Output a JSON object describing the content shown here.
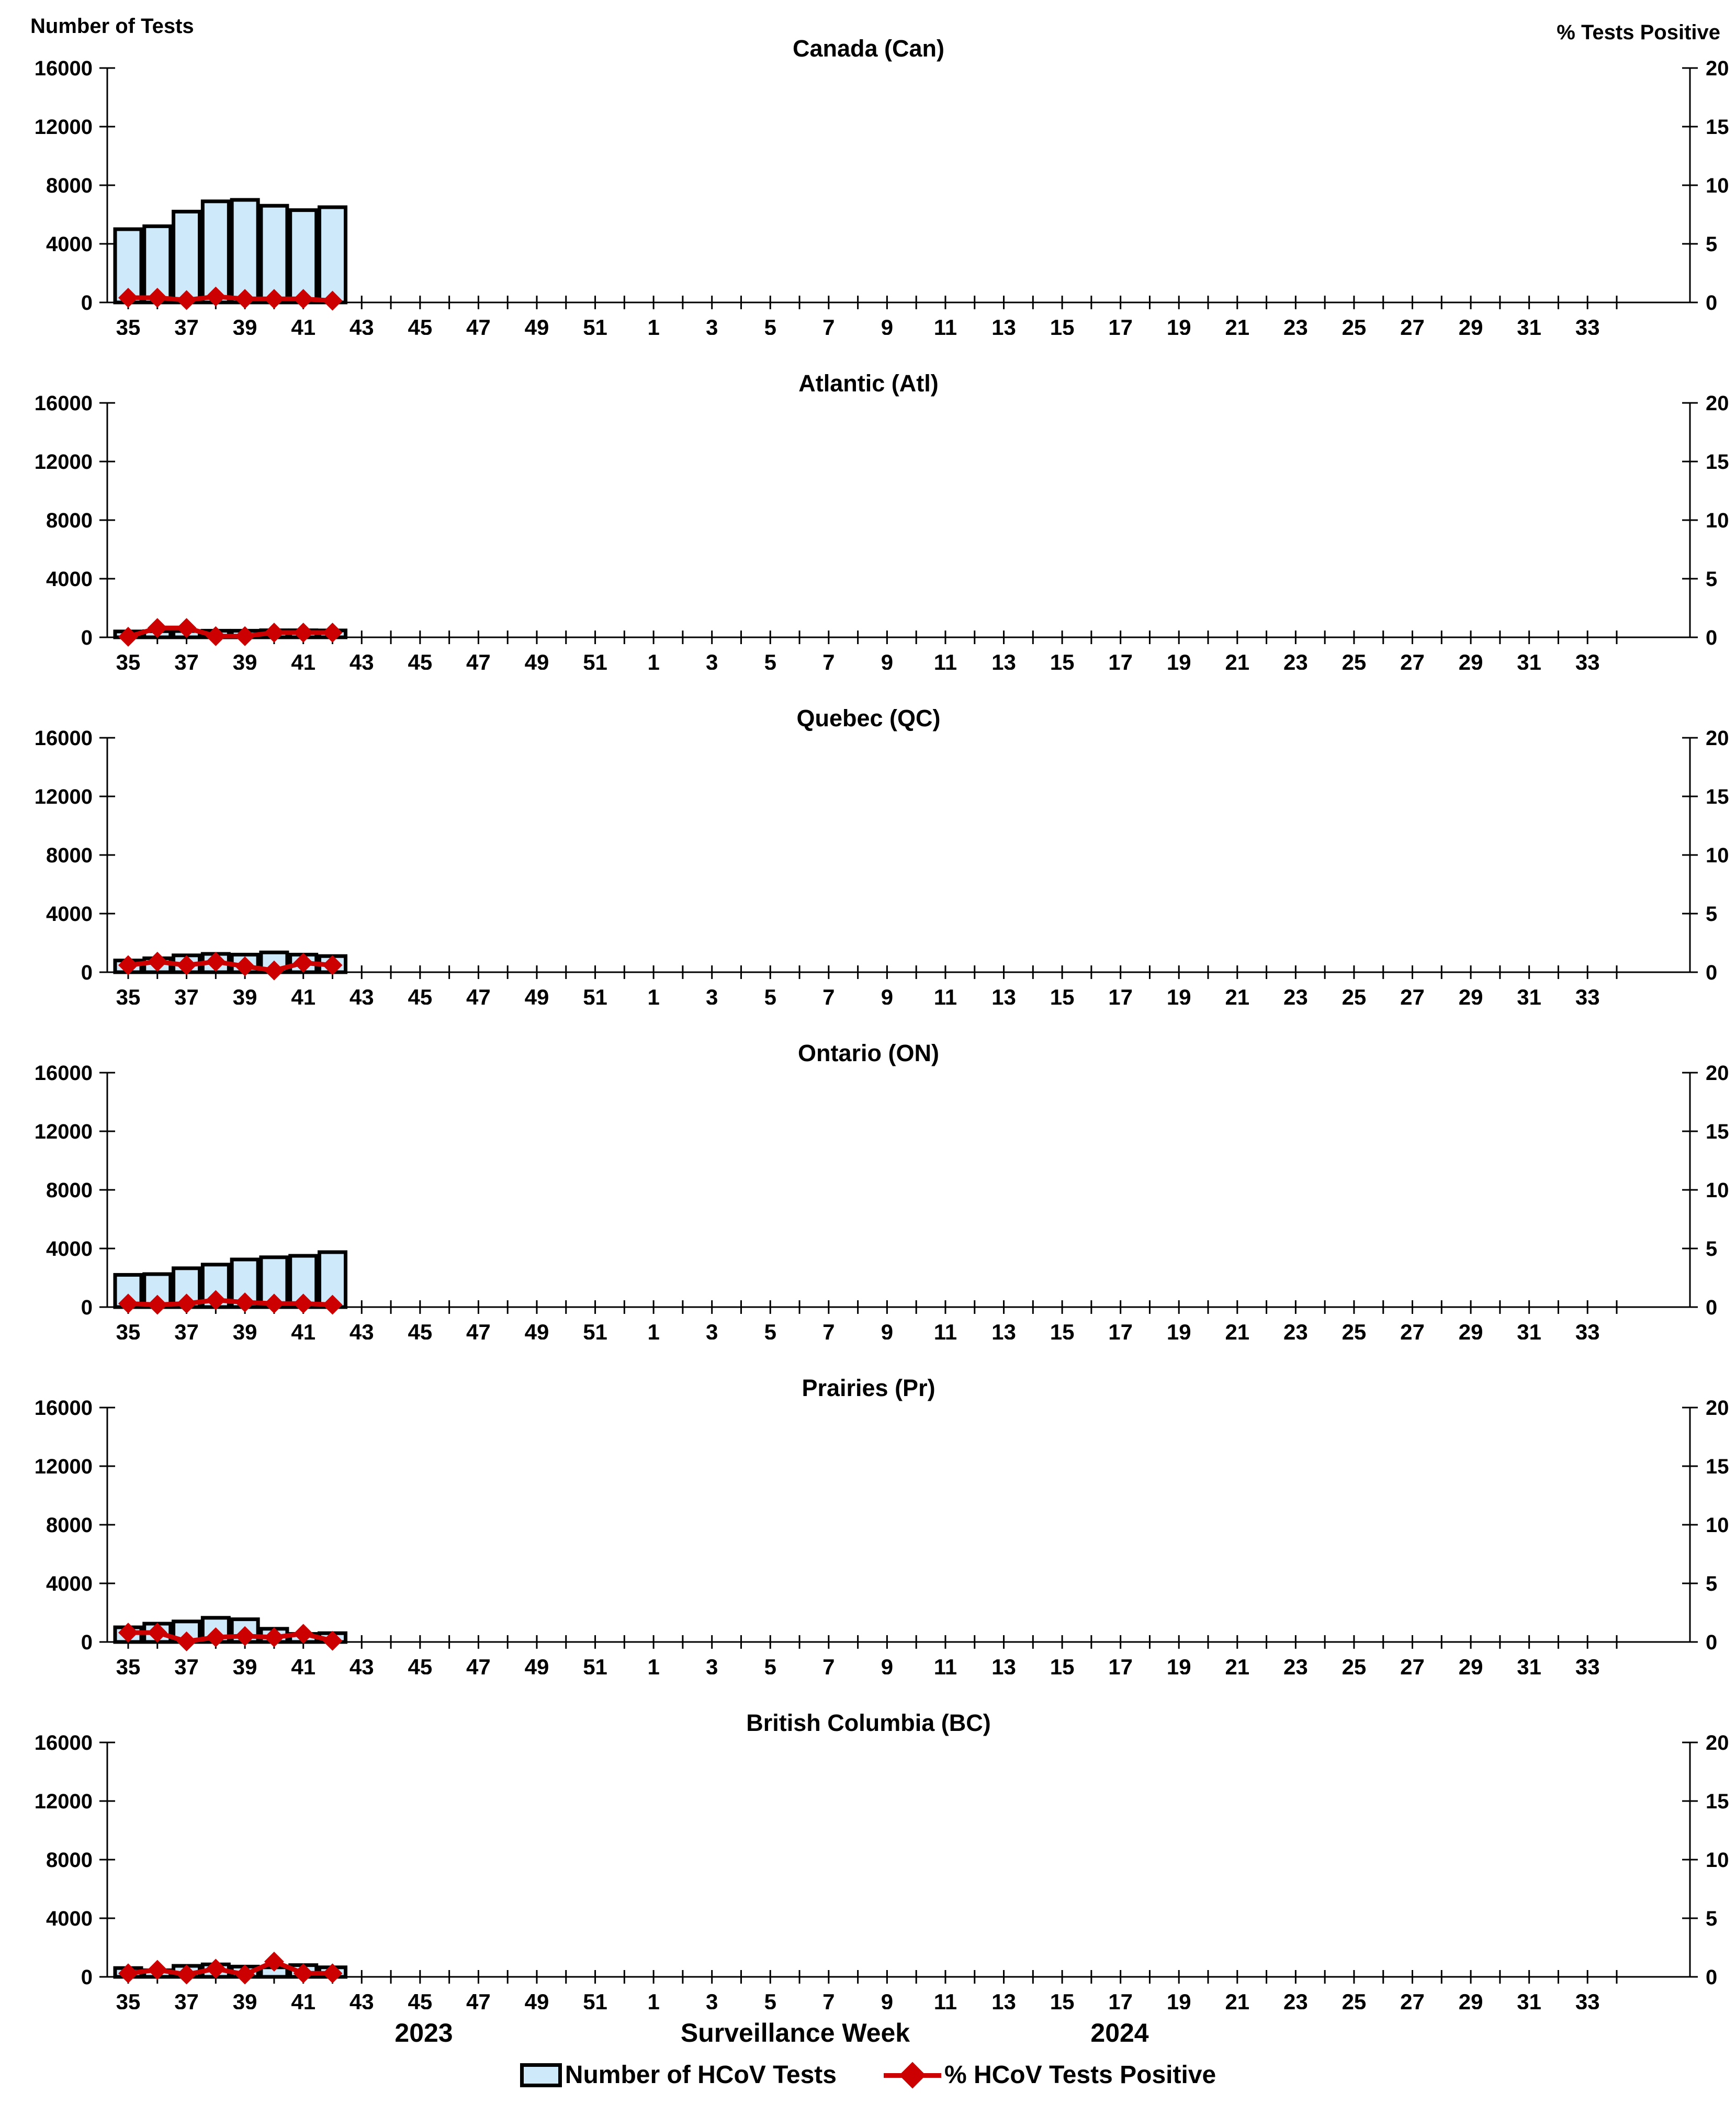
{
  "page": {
    "left_axis_title": "Number of Tests",
    "right_axis_title": "% Tests Positive",
    "x_axis_title": "Surveillance Week",
    "year_left": "2023",
    "year_right": "2024",
    "legend": [
      {
        "label": "Number of HCoV Tests",
        "marker": "bar-swatch"
      },
      {
        "label": "% HCoV Tests Positive",
        "marker": "line-diamond"
      }
    ],
    "colors": {
      "bar_fill": "#CDE9FA",
      "bar_border": "#000000",
      "line_color": "#CC0000",
      "axis_color": "#000000"
    }
  },
  "chart_data": {
    "type": "bar+line multi-panel",
    "x_axis": {
      "start_week": 35,
      "total_weeks": 52,
      "tick_every_week": true,
      "labeled_weeks": [
        "35",
        "37",
        "39",
        "41",
        "43",
        "45",
        "47",
        "49",
        "51",
        "1",
        "3",
        "5",
        "7",
        "9",
        "11",
        "13",
        "15",
        "17",
        "19",
        "21",
        "23",
        "25",
        "27",
        "29",
        "31",
        "33"
      ]
    },
    "left_axis": {
      "label": "Number of Tests",
      "ylim": [
        0,
        16000
      ],
      "ticks": [
        0,
        4000,
        8000,
        12000,
        16000
      ]
    },
    "right_axis": {
      "label": "% Tests Positive",
      "ylim": [
        0,
        20
      ],
      "ticks": [
        0,
        5,
        10,
        15,
        20
      ]
    },
    "data_weeks": [
      35,
      36,
      37,
      38,
      39,
      40,
      41,
      42
    ],
    "panels": [
      {
        "title": "Canada (Can)",
        "series": [
          {
            "name": "Number of HCoV Tests",
            "type": "bar",
            "values": [
              5000,
              5200,
              6200,
              6900,
              7000,
              6600,
              6300,
              6500
            ]
          },
          {
            "name": "% HCoV Tests Positive",
            "type": "line",
            "values": [
              0.4,
              0.4,
              0.2,
              0.5,
              0.3,
              0.3,
              0.3,
              0.15
            ]
          }
        ]
      },
      {
        "title": "Atlantic (Atl)",
        "series": [
          {
            "name": "Number of HCoV Tests",
            "type": "bar",
            "values": [
              400,
              420,
              430,
              450,
              450,
              480,
              480,
              470
            ]
          },
          {
            "name": "% HCoV Tests Positive",
            "type": "line",
            "values": [
              0.05,
              0.8,
              0.8,
              0.1,
              0.1,
              0.4,
              0.4,
              0.4
            ]
          }
        ]
      },
      {
        "title": "Quebec (QC)",
        "series": [
          {
            "name": "Number of HCoV Tests",
            "type": "bar",
            "values": [
              800,
              950,
              1150,
              1250,
              1200,
              1350,
              1200,
              1100
            ]
          },
          {
            "name": "% HCoV Tests Positive",
            "type": "line",
            "values": [
              0.6,
              0.9,
              0.6,
              0.9,
              0.5,
              0.15,
              0.8,
              0.6
            ]
          }
        ]
      },
      {
        "title": "Ontario (ON)",
        "series": [
          {
            "name": "Number of HCoV Tests",
            "type": "bar",
            "values": [
              2200,
              2250,
              2650,
              2900,
              3250,
              3400,
              3500,
              3750
            ]
          },
          {
            "name": "% HCoV Tests Positive",
            "type": "line",
            "values": [
              0.3,
              0.2,
              0.3,
              0.6,
              0.4,
              0.3,
              0.3,
              0.2
            ]
          }
        ]
      },
      {
        "title": "Prairies (Pr)",
        "series": [
          {
            "name": "Number of HCoV Tests",
            "type": "bar",
            "values": [
              1000,
              1250,
              1400,
              1650,
              1550,
              900,
              550,
              600
            ]
          },
          {
            "name": "% HCoV Tests Positive",
            "type": "line",
            "values": [
              0.8,
              0.8,
              0.05,
              0.4,
              0.5,
              0.4,
              0.7,
              0.1
            ]
          }
        ]
      },
      {
        "title": "British Columbia (BC)",
        "series": [
          {
            "name": "Number of HCoV Tests",
            "type": "bar",
            "values": [
              600,
              450,
              750,
              850,
              700,
              650,
              800,
              650
            ]
          },
          {
            "name": "% HCoV Tests Positive",
            "type": "line",
            "values": [
              0.3,
              0.6,
              0.2,
              0.7,
              0.2,
              1.3,
              0.3,
              0.3
            ]
          }
        ]
      }
    ]
  }
}
